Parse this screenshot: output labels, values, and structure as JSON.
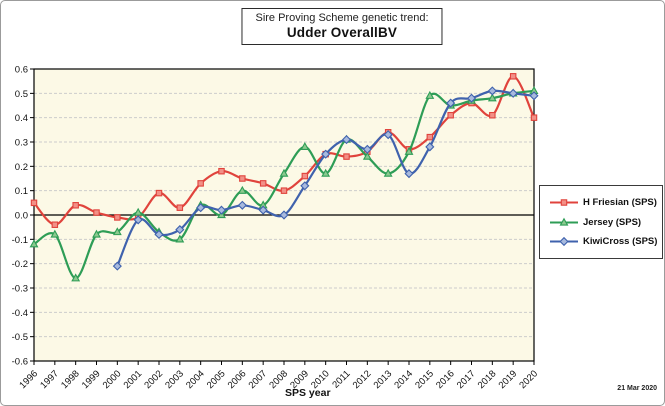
{
  "header": {
    "title_line1": "Sire Proving Scheme genetic trend:",
    "title_line2": "Udder OverallBV"
  },
  "footer": {
    "date_stamp": "21 Mar 2020"
  },
  "colors": {
    "plot_background": "#fcf9e6",
    "grid": "#cccccc",
    "zero_line": "#000000",
    "plot_border": "#000000"
  },
  "chart_data": {
    "type": "line",
    "title": "Sire Proving Scheme genetic trend: Udder OverallBV",
    "xlabel": "SPS year",
    "ylabel": "",
    "ylim": [
      -0.6,
      0.6
    ],
    "yticks": [
      0.6,
      0.5,
      0.4,
      0.3,
      0.2,
      0.1,
      0,
      -0.1,
      -0.2,
      -0.3,
      -0.4,
      -0.5,
      -0.6
    ],
    "grid": true,
    "smoothed_lines": true,
    "legend_position": "right",
    "x": [
      1996,
      1997,
      1998,
      1999,
      2000,
      2001,
      2002,
      2003,
      2004,
      2005,
      2006,
      2007,
      2008,
      2009,
      2010,
      2011,
      2012,
      2013,
      2014,
      2015,
      2016,
      2017,
      2018,
      2019,
      2020
    ],
    "series": [
      {
        "name": "H Friesian (SPS)",
        "color": "#e0433c",
        "marker": "square",
        "marker_fill": "#f29087",
        "values": [
          0.05,
          -0.04,
          0.04,
          0.01,
          -0.01,
          -0.01,
          0.09,
          0.03,
          0.13,
          0.18,
          0.15,
          0.13,
          0.1,
          0.16,
          0.25,
          0.24,
          0.26,
          0.34,
          0.27,
          0.32,
          0.41,
          0.46,
          0.41,
          0.57,
          0.4
        ]
      },
      {
        "name": "Jersey (SPS)",
        "color": "#2e9d56",
        "marker": "triangle",
        "marker_fill": "#8cc98f",
        "values": [
          -0.12,
          -0.08,
          -0.26,
          -0.08,
          -0.07,
          0.01,
          -0.07,
          -0.1,
          0.04,
          0,
          0.1,
          0.04,
          0.17,
          0.28,
          0.17,
          0.31,
          0.24,
          0.17,
          0.26,
          0.49,
          0.45,
          0.47,
          0.48,
          0.5,
          0.51
        ]
      },
      {
        "name": "KiwiCross (SPS)",
        "color": "#3f62ad",
        "marker": "diamond",
        "marker_fill": "#a8bade",
        "values": [
          null,
          null,
          null,
          null,
          -0.21,
          -0.02,
          -0.08,
          -0.06,
          0.03,
          0.02,
          0.04,
          0.02,
          0,
          0.12,
          0.25,
          0.31,
          0.27,
          0.33,
          0.17,
          0.28,
          0.46,
          0.48,
          0.51,
          0.5,
          0.49
        ]
      }
    ]
  }
}
